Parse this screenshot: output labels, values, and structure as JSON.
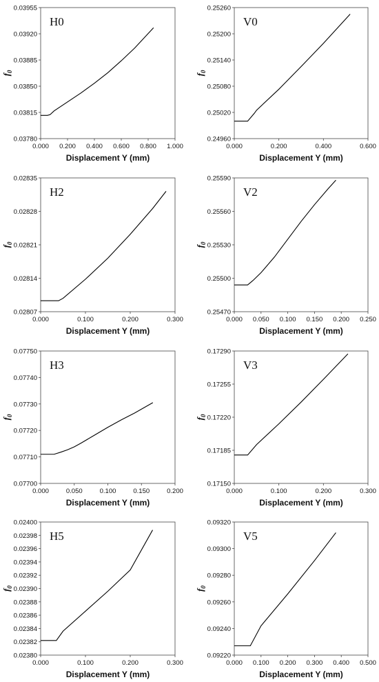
{
  "chart_data": [
    {
      "type": "line",
      "panel_label": "H0",
      "xlabel": "Displacement Y (mm)",
      "ylabel": "f0",
      "xlim": [
        0,
        1.0
      ],
      "ylim": [
        0.0378,
        0.03955
      ],
      "xticks": [
        "0.000",
        "0.200",
        "0.400",
        "0.600",
        "0.800",
        "1.000"
      ],
      "yticks": [
        "0.03780",
        "0.03815",
        "0.03850",
        "0.03885",
        "0.03920",
        "0.03955"
      ],
      "x": [
        0.0,
        0.05,
        0.07,
        0.1,
        0.2,
        0.3,
        0.4,
        0.5,
        0.6,
        0.7,
        0.84
      ],
      "y": [
        0.03811,
        0.03811,
        0.03812,
        0.03817,
        0.03829,
        0.03841,
        0.03854,
        0.03868,
        0.03884,
        0.03901,
        0.03928
      ]
    },
    {
      "type": "line",
      "panel_label": "V0",
      "xlabel": "Displacement Y (mm)",
      "ylabel": "f0",
      "xlim": [
        0,
        0.6
      ],
      "ylim": [
        0.2496,
        0.2526
      ],
      "xticks": [
        "0.000",
        "0.200",
        "0.400",
        "0.600"
      ],
      "yticks": [
        "0.24960",
        "0.25020",
        "0.25080",
        "0.25140",
        "0.25200",
        "0.25260"
      ],
      "x": [
        0.0,
        0.06,
        0.09,
        0.1,
        0.2,
        0.3,
        0.4,
        0.52
      ],
      "y": [
        0.25,
        0.25,
        0.25018,
        0.25025,
        0.25073,
        0.25125,
        0.25178,
        0.25245
      ]
    },
    {
      "type": "line",
      "panel_label": "H2",
      "xlabel": "Displacement Y (mm)",
      "ylabel": "f0",
      "xlim": [
        0,
        0.3
      ],
      "ylim": [
        0.02807,
        0.02835
      ],
      "xticks": [
        "0.000",
        "0.100",
        "0.200",
        "0.300"
      ],
      "yticks": [
        "0.02807",
        "0.02814",
        "0.02821",
        "0.02828",
        "0.02835"
      ],
      "x": [
        0.0,
        0.04,
        0.05,
        0.1,
        0.15,
        0.2,
        0.25,
        0.28
      ],
      "y": [
        0.028093,
        0.028093,
        0.028098,
        0.028138,
        0.028182,
        0.028232,
        0.028286,
        0.028322
      ]
    },
    {
      "type": "line",
      "panel_label": "V2",
      "xlabel": "Displacement Y (mm)",
      "ylabel": "f0",
      "xlim": [
        0,
        0.25
      ],
      "ylim": [
        0.2547,
        0.2559
      ],
      "xticks": [
        "0.000",
        "0.050",
        "0.100",
        "0.150",
        "0.200",
        "0.250"
      ],
      "yticks": [
        "0.25470",
        "0.25500",
        "0.25530",
        "0.25560",
        "0.25590"
      ],
      "x": [
        0.0,
        0.025,
        0.035,
        0.05,
        0.075,
        0.1,
        0.125,
        0.15,
        0.175,
        0.19
      ],
      "y": [
        0.25494,
        0.25494,
        0.25498,
        0.25505,
        0.25519,
        0.25535,
        0.25551,
        0.25566,
        0.2558,
        0.25588
      ]
    },
    {
      "type": "line",
      "panel_label": "H3",
      "xlabel": "Displacement Y (mm)",
      "ylabel": "f0",
      "xlim": [
        0,
        0.2
      ],
      "ylim": [
        0.077,
        0.0775
      ],
      "xticks": [
        "0.000",
        "0.050",
        "0.100",
        "0.150",
        "0.200"
      ],
      "yticks": [
        "0.07700",
        "0.07710",
        "0.07720",
        "0.07730",
        "0.07740",
        "0.07750"
      ],
      "x": [
        0.0,
        0.02,
        0.03,
        0.04,
        0.05,
        0.06,
        0.08,
        0.1,
        0.12,
        0.14,
        0.167
      ],
      "y": [
        0.07711,
        0.07711,
        0.077118,
        0.077127,
        0.077138,
        0.077152,
        0.077182,
        0.077212,
        0.07724,
        0.077266,
        0.077305
      ]
    },
    {
      "type": "line",
      "panel_label": "V3",
      "xlabel": "Displacement Y (mm)",
      "ylabel": "f0",
      "xlim": [
        0,
        0.3
      ],
      "ylim": [
        0.1715,
        0.1729
      ],
      "xticks": [
        "0.000",
        "0.100",
        "0.200",
        "0.300"
      ],
      "yticks": [
        "0.17150",
        "0.17185",
        "0.17220",
        "0.17255",
        "0.17290"
      ],
      "x": [
        0.0,
        0.03,
        0.05,
        0.1,
        0.15,
        0.2,
        0.255
      ],
      "y": [
        0.1718,
        0.1718,
        0.17191,
        0.17213,
        0.17236,
        0.1726,
        0.17287
      ]
    },
    {
      "type": "line",
      "panel_label": "H5",
      "xlabel": "Displacement Y (mm)",
      "ylabel": "f0",
      "xlim": [
        0,
        0.3
      ],
      "ylim": [
        0.0238,
        0.024
      ],
      "xticks": [
        "0.000",
        "0.100",
        "0.200",
        "0.300"
      ],
      "yticks": [
        "0.02380",
        "0.02382",
        "0.02384",
        "0.02386",
        "0.02388",
        "0.02390",
        "0.02392",
        "0.02394",
        "0.02396",
        "0.02398",
        "0.02400"
      ],
      "x": [
        0.0,
        0.035,
        0.05,
        0.1,
        0.15,
        0.2,
        0.25
      ],
      "y": [
        0.023822,
        0.023822,
        0.023836,
        0.023866,
        0.023896,
        0.023928,
        0.023988
      ]
    },
    {
      "type": "line",
      "panel_label": "V5",
      "xlabel": "Displacement Y (mm)",
      "ylabel": "f0",
      "xlim": [
        0,
        0.5
      ],
      "ylim": [
        0.0922,
        0.0932
      ],
      "xticks": [
        "0.000",
        "0.100",
        "0.200",
        "0.300",
        "0.400",
        "0.500"
      ],
      "yticks": [
        "0.09220",
        "0.09240",
        "0.09260",
        "0.09280",
        "0.09300",
        "0.09320"
      ],
      "x": [
        0.0,
        0.06,
        0.1,
        0.2,
        0.3,
        0.38
      ],
      "y": [
        0.09227,
        0.09227,
        0.09242,
        0.09266,
        0.09291,
        0.09312
      ]
    }
  ]
}
